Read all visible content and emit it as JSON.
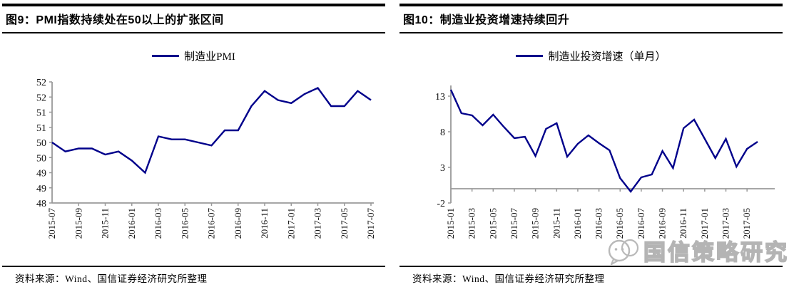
{
  "watermark": {
    "text": "国信策略研究",
    "icon": "wechat-smiley-icon",
    "color": "#b4b4b4"
  },
  "source_note": "资料来源：Wind、国信证券经济研究所整理",
  "colors": {
    "line": "#00008B",
    "axis": "#999999",
    "title_bar": "#000000"
  },
  "chart_data": [
    {
      "type": "line",
      "title": "图9：PMI指数持续处在50以上的扩张区间",
      "legend_position": "top",
      "grid": false,
      "x": [
        "2015-07",
        "2015-08",
        "2015-09",
        "2015-10",
        "2015-11",
        "2015-12",
        "2016-01",
        "2016-02",
        "2016-03",
        "2016-04",
        "2016-05",
        "2016-06",
        "2016-07",
        "2016-08",
        "2016-09",
        "2016-10",
        "2016-11",
        "2016-12",
        "2017-01",
        "2017-02",
        "2017-03",
        "2017-04",
        "2017-05",
        "2017-06",
        "2017-07"
      ],
      "x_tick_labels": [
        "2015-07",
        "2015-09",
        "2015-11",
        "2016-01",
        "2016-03",
        "2016-05",
        "2016-07",
        "2016-09",
        "2016-11",
        "2017-01",
        "2017-03",
        "2017-05",
        "2017-07"
      ],
      "series": [
        {
          "name": "制造业PMI",
          "color": "#00008B",
          "values": [
            50.0,
            49.7,
            49.8,
            49.8,
            49.6,
            49.7,
            49.4,
            49.0,
            50.2,
            50.1,
            50.1,
            50.0,
            49.9,
            50.4,
            50.4,
            51.2,
            51.7,
            51.4,
            51.3,
            51.6,
            51.8,
            51.2,
            51.2,
            51.7,
            51.4
          ]
        }
      ],
      "ylim": [
        48,
        52
      ],
      "ytick_values": [
        48,
        48.5,
        49,
        49.5,
        50,
        50.5,
        51,
        51.5,
        52
      ],
      "ytick_labels": [
        "48",
        "49",
        "49",
        "50",
        "50",
        "51",
        "51",
        "52",
        "52"
      ],
      "x_axis_crosses_at": 48
    },
    {
      "type": "line",
      "title": "图10：制造业投资增速持续回升",
      "legend_position": "top",
      "grid": false,
      "x": [
        "2015-01",
        "2015-02",
        "2015-03",
        "2015-04",
        "2015-05",
        "2015-06",
        "2015-07",
        "2015-08",
        "2015-09",
        "2015-10",
        "2015-11",
        "2015-12",
        "2016-01",
        "2016-02",
        "2016-03",
        "2016-04",
        "2016-05",
        "2016-06",
        "2016-07",
        "2016-08",
        "2016-09",
        "2016-10",
        "2016-11",
        "2016-12",
        "2017-01",
        "2017-02",
        "2017-03",
        "2017-04",
        "2017-05",
        "2017-06"
      ],
      "x_tick_labels": [
        "2015-01",
        "2015-03",
        "2015-05",
        "2015-07",
        "2015-09",
        "2015-11",
        "2016-01",
        "2016-03",
        "2016-05",
        "2016-07",
        "2016-09",
        "2016-11",
        "2017-01",
        "2017-03",
        "2017-05"
      ],
      "series": [
        {
          "name": "制造业投资增速（单月）",
          "color": "#00008B",
          "values": [
            13.9,
            10.6,
            10.3,
            8.9,
            10.4,
            8.7,
            7.1,
            7.3,
            4.6,
            8.4,
            9.2,
            4.5,
            6.3,
            7.5,
            6.4,
            5.4,
            1.5,
            -0.4,
            1.6,
            2.0,
            5.3,
            2.9,
            8.5,
            9.7,
            7.0,
            4.3,
            7.0,
            3.1,
            5.6,
            6.6
          ]
        }
      ],
      "ylim": [
        -2,
        13
      ],
      "ytick_values": [
        -2,
        3,
        8,
        13
      ],
      "ytick_labels": [
        "-2",
        "3",
        "8",
        "13"
      ],
      "x_axis_crosses_at": 0
    }
  ]
}
